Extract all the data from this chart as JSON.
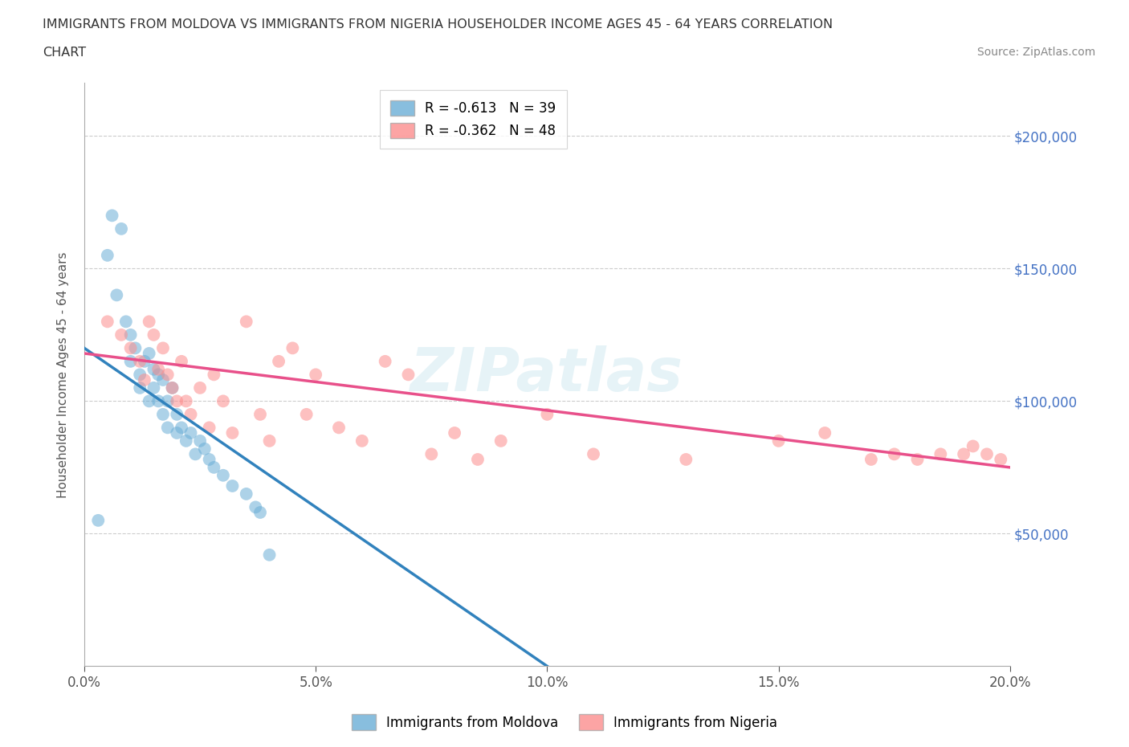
{
  "title_line1": "IMMIGRANTS FROM MOLDOVA VS IMMIGRANTS FROM NIGERIA HOUSEHOLDER INCOME AGES 45 - 64 YEARS CORRELATION",
  "title_line2": "CHART",
  "source_text": "Source: ZipAtlas.com",
  "ylabel": "Householder Income Ages 45 - 64 years",
  "xlim": [
    0.0,
    0.2
  ],
  "ylim": [
    0,
    220000
  ],
  "xtick_labels": [
    "0.0%",
    "5.0%",
    "10.0%",
    "15.0%",
    "20.0%"
  ],
  "xtick_values": [
    0.0,
    0.05,
    0.1,
    0.15,
    0.2
  ],
  "ytick_labels": [
    "$50,000",
    "$100,000",
    "$150,000",
    "$200,000"
  ],
  "ytick_values": [
    50000,
    100000,
    150000,
    200000
  ],
  "legend_moldova": "R = -0.613   N = 39",
  "legend_nigeria": "R = -0.362   N = 48",
  "moldova_color": "#6baed6",
  "nigeria_color": "#fc8d8d",
  "moldova_line_color": "#3182bd",
  "nigeria_line_color": "#e8508a",
  "watermark_text": "ZIPatlas",
  "moldova_scatter_x": [
    0.003,
    0.005,
    0.006,
    0.007,
    0.008,
    0.009,
    0.01,
    0.01,
    0.011,
    0.012,
    0.012,
    0.013,
    0.014,
    0.014,
    0.015,
    0.015,
    0.016,
    0.016,
    0.017,
    0.017,
    0.018,
    0.018,
    0.019,
    0.02,
    0.02,
    0.021,
    0.022,
    0.023,
    0.024,
    0.025,
    0.026,
    0.027,
    0.028,
    0.03,
    0.032,
    0.035,
    0.037,
    0.038,
    0.04
  ],
  "moldova_scatter_y": [
    55000,
    155000,
    170000,
    140000,
    165000,
    130000,
    125000,
    115000,
    120000,
    110000,
    105000,
    115000,
    100000,
    118000,
    105000,
    112000,
    110000,
    100000,
    108000,
    95000,
    100000,
    90000,
    105000,
    95000,
    88000,
    90000,
    85000,
    88000,
    80000,
    85000,
    82000,
    78000,
    75000,
    72000,
    68000,
    65000,
    60000,
    58000,
    42000
  ],
  "nigeria_scatter_x": [
    0.005,
    0.008,
    0.01,
    0.012,
    0.013,
    0.014,
    0.015,
    0.016,
    0.017,
    0.018,
    0.019,
    0.02,
    0.021,
    0.022,
    0.023,
    0.025,
    0.027,
    0.028,
    0.03,
    0.032,
    0.035,
    0.038,
    0.04,
    0.042,
    0.045,
    0.048,
    0.05,
    0.055,
    0.06,
    0.065,
    0.07,
    0.075,
    0.08,
    0.085,
    0.09,
    0.1,
    0.11,
    0.13,
    0.15,
    0.16,
    0.17,
    0.175,
    0.18,
    0.185,
    0.19,
    0.192,
    0.195,
    0.198
  ],
  "nigeria_scatter_y": [
    130000,
    125000,
    120000,
    115000,
    108000,
    130000,
    125000,
    112000,
    120000,
    110000,
    105000,
    100000,
    115000,
    100000,
    95000,
    105000,
    90000,
    110000,
    100000,
    88000,
    130000,
    95000,
    85000,
    115000,
    120000,
    95000,
    110000,
    90000,
    85000,
    115000,
    110000,
    80000,
    88000,
    78000,
    85000,
    95000,
    80000,
    78000,
    85000,
    88000,
    78000,
    80000,
    78000,
    80000,
    80000,
    83000,
    80000,
    78000
  ]
}
